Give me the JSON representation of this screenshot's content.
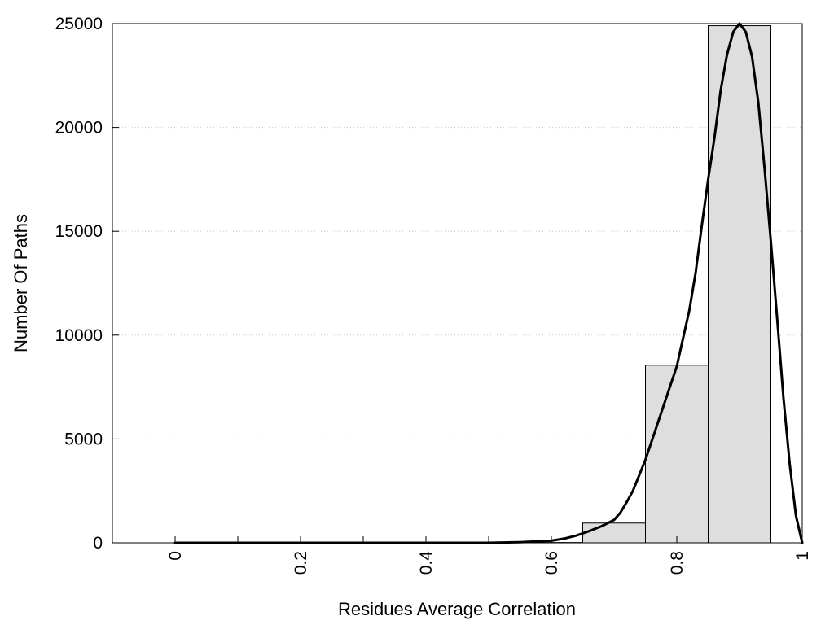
{
  "chart_data": {
    "type": "bar",
    "title": "",
    "xlabel": "Residues Average Correlation",
    "ylabel": "Number Of Paths",
    "xlim": [
      -0.1,
      1.0
    ],
    "ylim": [
      0,
      25000
    ],
    "grid": {
      "y": true,
      "x": false,
      "style": "dotted"
    },
    "legend": "none",
    "x_tick_labels": [
      "0",
      "0.2",
      "0.4",
      "0.6",
      "0.8",
      "1"
    ],
    "x_ticks": [
      0,
      0.2,
      0.4,
      0.6,
      0.8,
      1.0
    ],
    "x_minor_ticks": [
      0.1,
      0.3,
      0.5
    ],
    "y_tick_labels": [
      "0",
      "5000",
      "10000",
      "15000",
      "20000",
      "25000"
    ],
    "y_ticks": [
      0,
      5000,
      10000,
      15000,
      20000,
      25000
    ],
    "bin_width": 0.1,
    "series": [
      {
        "type": "bar",
        "x": [
          0.0,
          0.1,
          0.2,
          0.3,
          0.4,
          0.5,
          0.6,
          0.7,
          0.8,
          0.9
        ],
        "values": [
          0,
          0,
          0,
          0,
          0,
          0,
          15,
          950,
          8550,
          24900
        ]
      },
      {
        "type": "line",
        "x": [
          0.0,
          0.1,
          0.2,
          0.3,
          0.4,
          0.5,
          0.55,
          0.6,
          0.62,
          0.64,
          0.66,
          0.68,
          0.7,
          0.71,
          0.72,
          0.73,
          0.74,
          0.75,
          0.76,
          0.78,
          0.8,
          0.82,
          0.83,
          0.84,
          0.85,
          0.86,
          0.87,
          0.88,
          0.89,
          0.9,
          0.91,
          0.92,
          0.93,
          0.94,
          0.95,
          0.96,
          0.97,
          0.98,
          0.99,
          1.0
        ],
        "values": [
          0,
          0,
          0,
          0,
          0,
          0,
          30,
          100,
          200,
          350,
          560,
          800,
          1100,
          1450,
          1950,
          2500,
          3250,
          4000,
          4900,
          6700,
          8500,
          11200,
          13000,
          15300,
          17500,
          19500,
          21800,
          23500,
          24600,
          25000,
          24600,
          23400,
          21200,
          18000,
          14500,
          10800,
          7000,
          3800,
          1300,
          0
        ]
      }
    ],
    "colors": {
      "bar_fill": "#dedede",
      "bar_stroke": "#000000",
      "line": "#000000",
      "grid": "#c8c8c8"
    }
  }
}
